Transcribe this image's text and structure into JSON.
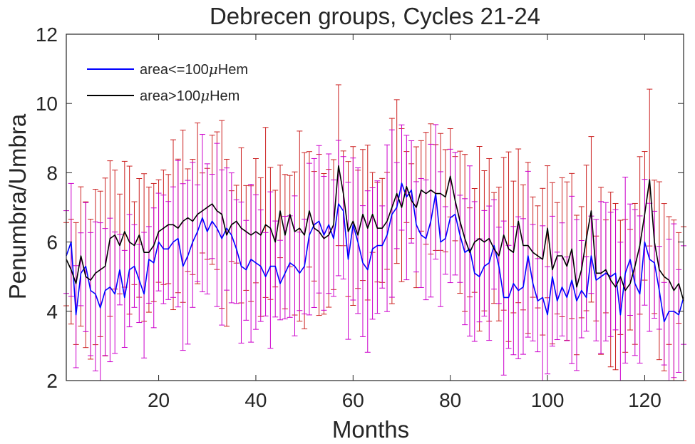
{
  "chart_data": {
    "type": "line",
    "title": "Debrecen groups, Cycles 21-24",
    "xlabel": "Months",
    "ylabel": "Penumbra/Umbra",
    "xlim": [
      1,
      128
    ],
    "ylim": [
      2,
      12
    ],
    "xticks": [
      20,
      40,
      60,
      80,
      100,
      120
    ],
    "yticks": [
      2,
      4,
      6,
      8,
      10,
      12
    ],
    "grid": false,
    "legend_position": "top-left",
    "x": [
      1,
      2,
      3,
      4,
      5,
      6,
      7,
      8,
      9,
      10,
      11,
      12,
      13,
      14,
      15,
      16,
      17,
      18,
      19,
      20,
      21,
      22,
      23,
      24,
      25,
      26,
      27,
      28,
      29,
      30,
      31,
      32,
      33,
      34,
      35,
      36,
      37,
      38,
      39,
      40,
      41,
      42,
      43,
      44,
      45,
      46,
      47,
      48,
      49,
      50,
      51,
      52,
      53,
      54,
      55,
      56,
      57,
      58,
      59,
      60,
      61,
      62,
      63,
      64,
      65,
      66,
      67,
      68,
      69,
      70,
      71,
      72,
      73,
      74,
      75,
      76,
      77,
      78,
      79,
      80,
      81,
      82,
      83,
      84,
      85,
      86,
      87,
      88,
      89,
      90,
      91,
      92,
      93,
      94,
      95,
      96,
      97,
      98,
      99,
      100,
      101,
      102,
      103,
      104,
      105,
      106,
      107,
      108,
      109,
      110,
      111,
      112,
      113,
      114,
      115,
      116,
      117,
      118,
      119,
      120,
      121,
      122,
      123,
      124,
      125,
      126,
      127,
      128
    ],
    "series": [
      {
        "name": "area<=100μHem",
        "label_prefix": "area<=100",
        "label_mu": "μ",
        "label_suffix": "Hem",
        "color": "#0000ff",
        "errorbar_color": "#cc00cc",
        "values": [
          5.6,
          6.0,
          3.9,
          5.1,
          5.3,
          4.6,
          4.5,
          4.1,
          4.6,
          4.7,
          4.5,
          5.2,
          4.4,
          5.2,
          5.3,
          4.9,
          4.5,
          5.5,
          5.4,
          6.0,
          5.8,
          5.8,
          6.0,
          6.1,
          5.3,
          5.6,
          6.0,
          6.3,
          6.7,
          6.3,
          6.6,
          6.4,
          6.1,
          6.4,
          6.2,
          5.8,
          5.3,
          5.2,
          5.5,
          5.4,
          5.3,
          5.0,
          5.3,
          5.3,
          4.8,
          5.1,
          5.4,
          5.3,
          5.1,
          5.3,
          6.2,
          6.5,
          6.6,
          6.2,
          6.5,
          6.1,
          7.1,
          6.9,
          5.5,
          6.5,
          6.0,
          5.4,
          5.2,
          5.8,
          5.9,
          5.9,
          6.2,
          6.8,
          7.0,
          7.7,
          7.3,
          7.5,
          6.5,
          6.2,
          6.1,
          6.6,
          7.4,
          6.0,
          6.1,
          6.7,
          6.8,
          6.2,
          5.7,
          5.8,
          5.1,
          5.0,
          5.3,
          5.4,
          5.9,
          5.3,
          4.4,
          4.4,
          4.8,
          4.6,
          4.7,
          5.6,
          4.8,
          4.3,
          4.4,
          3.9,
          5.0,
          4.3,
          4.7,
          4.4,
          4.9,
          4.3,
          4.6,
          4.4,
          5.6,
          4.9,
          5.0,
          5.1,
          5.0,
          5.1,
          3.9,
          5.1,
          5.5,
          4.8,
          4.5,
          6.0,
          5.5,
          5.4,
          4.6,
          3.7,
          4.0,
          4.0,
          3.9,
          4.4
        ]
      },
      {
        "name": "area>100μHem",
        "label_prefix": "area>100",
        "label_mu": "μ",
        "label_suffix": "Hem",
        "color": "#000000",
        "errorbar_color": "#cc2222",
        "values": [
          5.5,
          5.2,
          4.8,
          5.6,
          5.0,
          4.9,
          5.1,
          5.2,
          5.3,
          6.1,
          6.2,
          5.9,
          6.3,
          6.0,
          5.9,
          6.2,
          5.7,
          5.7,
          5.9,
          6.3,
          6.4,
          6.5,
          6.5,
          6.4,
          6.6,
          6.7,
          6.6,
          6.8,
          6.9,
          7.0,
          7.1,
          6.9,
          6.8,
          6.2,
          6.5,
          6.6,
          6.4,
          6.3,
          6.2,
          6.3,
          6.2,
          6.5,
          6.4,
          6.0,
          6.9,
          6.2,
          6.8,
          6.3,
          6.4,
          6.2,
          6.9,
          6.4,
          6.3,
          6.1,
          6.2,
          6.5,
          8.2,
          7.4,
          6.3,
          6.6,
          6.2,
          6.8,
          6.4,
          6.8,
          6.4,
          6.4,
          6.6,
          7.0,
          7.4,
          7.0,
          7.6,
          7.2,
          7.0,
          7.5,
          7.4,
          7.5,
          7.4,
          7.4,
          7.3,
          7.9,
          7.2,
          6.6,
          6.1,
          5.7,
          6.0,
          6.1,
          6.0,
          6.1,
          5.8,
          5.6,
          6.2,
          5.8,
          5.7,
          6.6,
          5.9,
          5.9,
          5.7,
          5.6,
          5.5,
          6.4,
          5.2,
          5.6,
          5.6,
          5.3,
          5.8,
          4.7,
          5.2,
          6.1,
          6.9,
          5.1,
          5.1,
          5.2,
          4.9,
          4.7,
          5.0,
          4.6,
          4.8,
          5.3,
          5.9,
          6.8,
          7.8,
          6.0,
          5.2,
          5.0,
          4.9,
          4.6,
          4.8,
          4.3
        ]
      }
    ]
  }
}
